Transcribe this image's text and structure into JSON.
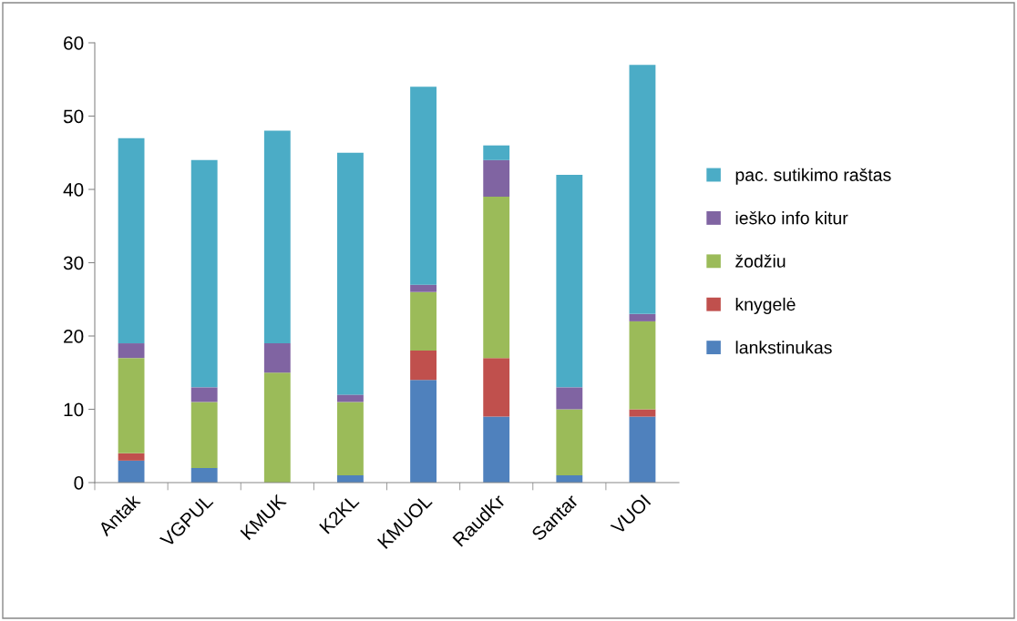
{
  "chart_data": {
    "type": "bar",
    "stacked": true,
    "categories": [
      "Antak",
      "VGPUL",
      "KMUK",
      "K2KL",
      "KMUOL",
      "RaudKr",
      "Santar",
      "VUOI"
    ],
    "series": [
      {
        "name": "lankstinukas",
        "color": "#4f81bd",
        "values": [
          3,
          2,
          0,
          1,
          14,
          9,
          1,
          9
        ]
      },
      {
        "name": "knygelė",
        "color": "#c0504d",
        "values": [
          1,
          0,
          0,
          0,
          4,
          8,
          0,
          1
        ]
      },
      {
        "name": "žodžiu",
        "color": "#9bbb59",
        "values": [
          13,
          9,
          15,
          10,
          8,
          22,
          9,
          12
        ]
      },
      {
        "name": "ieško info kitur",
        "color": "#8064a2",
        "values": [
          2,
          2,
          4,
          1,
          1,
          5,
          3,
          1
        ]
      },
      {
        "name": "pac. sutikimo raštas",
        "color": "#4bacc6",
        "values": [
          28,
          31,
          29,
          33,
          27,
          2,
          29,
          34
        ]
      }
    ],
    "ylim": [
      0,
      60
    ],
    "yticks": [
      0,
      10,
      20,
      30,
      40,
      50,
      60
    ],
    "grid": false,
    "legend": "right"
  }
}
